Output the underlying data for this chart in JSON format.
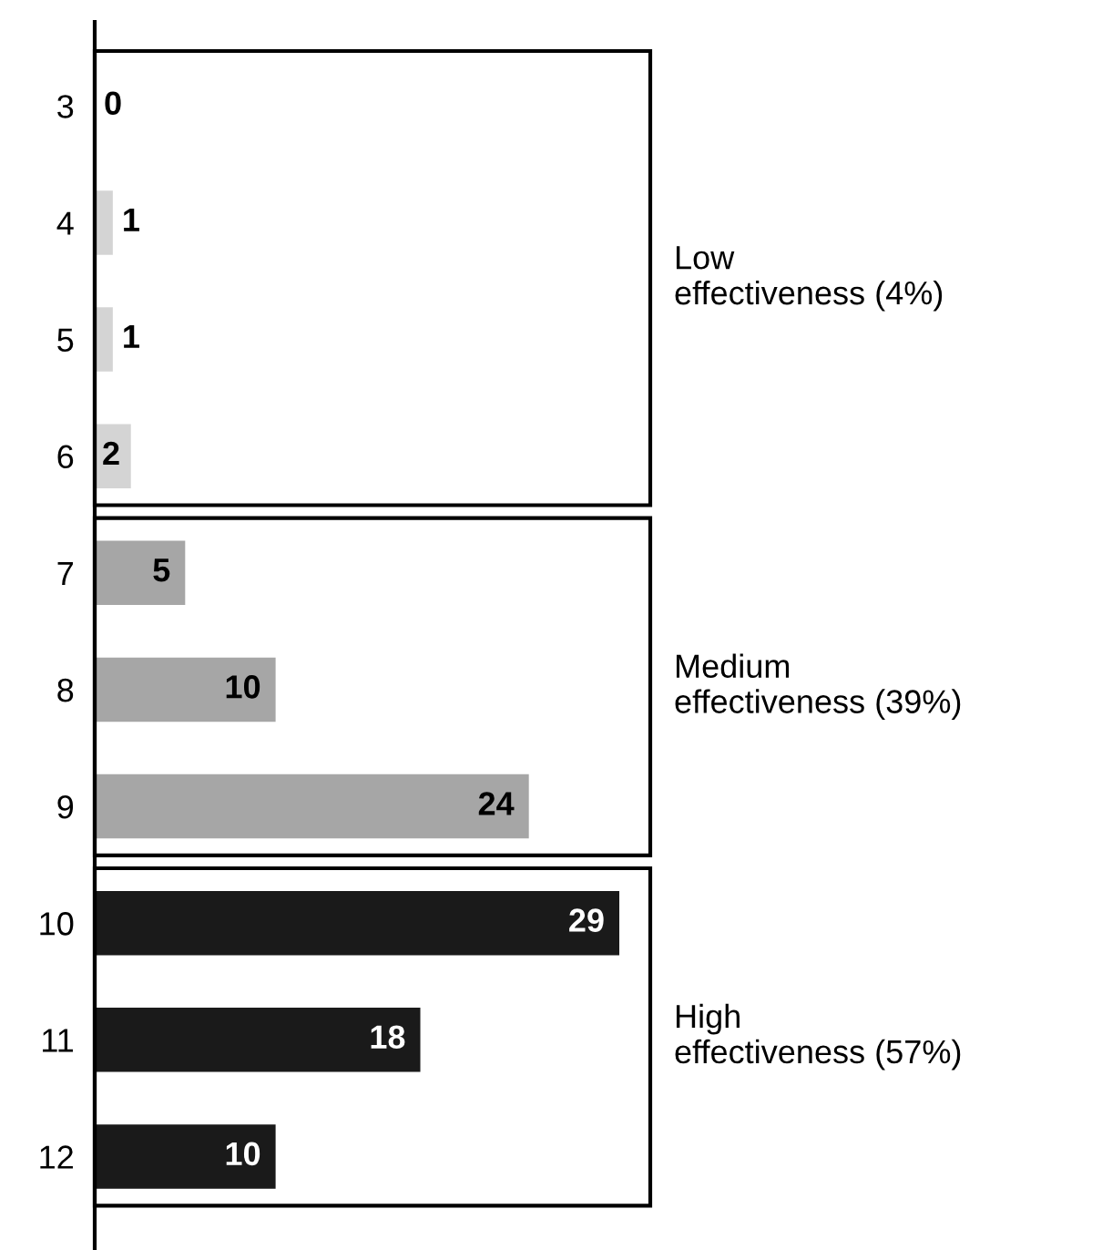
{
  "chart_data": {
    "type": "bar",
    "orientation": "horizontal",
    "categories": [
      "3",
      "4",
      "5",
      "6",
      "7",
      "8",
      "9",
      "10",
      "11",
      "12"
    ],
    "values": [
      0,
      1,
      1,
      2,
      5,
      10,
      24,
      29,
      18,
      10
    ],
    "colors": [
      "#d4d4d4",
      "#d4d4d4",
      "#d4d4d4",
      "#d4d4d4",
      "#a6a6a6",
      "#a6a6a6",
      "#a6a6a6",
      "#1a1a1a",
      "#1a1a1a",
      "#1a1a1a"
    ],
    "data_labels": true,
    "grid": false,
    "legend": false,
    "tick_labels": "y",
    "annotations": [
      "Low effectiveness (4%)",
      "Medium effectiveness (39%)",
      "High effectiveness (57%)"
    ]
  }
}
